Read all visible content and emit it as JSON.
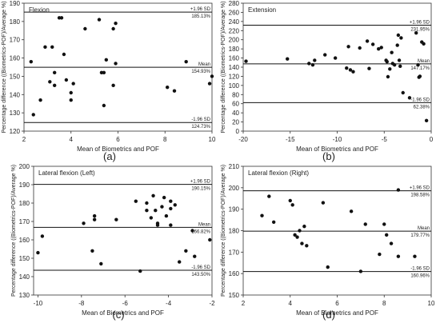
{
  "chart_data": [
    {
      "type": "scatter",
      "label": "(a)",
      "title": "Flexion",
      "xlabel": "Mean of Biometrics and POF",
      "ylabel": "Percentage difference ((Biometrics-POF)/Average %)",
      "xlim": [
        2,
        10
      ],
      "ylim": [
        120,
        190
      ],
      "xticks": [
        2,
        4,
        6,
        8,
        10
      ],
      "yticks": [
        120,
        130,
        140,
        150,
        160,
        170,
        180,
        190
      ],
      "grid": false,
      "reference_lines": [
        {
          "name": "+1.96 SD",
          "value": 185.13,
          "value_label": "185.13%"
        },
        {
          "name": "Mean",
          "value": 154.93,
          "value_label": "154.93%"
        },
        {
          "name": "-1.96 SD",
          "value": 124.73,
          "value_label": "124.73%"
        }
      ],
      "points": [
        [
          2.3,
          158
        ],
        [
          2.4,
          129
        ],
        [
          2.7,
          137
        ],
        [
          2.9,
          166
        ],
        [
          3.1,
          147
        ],
        [
          3.2,
          166
        ],
        [
          3.3,
          145
        ],
        [
          3.3,
          152
        ],
        [
          3.5,
          182
        ],
        [
          3.6,
          182
        ],
        [
          3.7,
          162
        ],
        [
          3.8,
          148
        ],
        [
          4.0,
          137
        ],
        [
          4.0,
          141
        ],
        [
          4.1,
          146
        ],
        [
          4.6,
          176
        ],
        [
          5.2,
          181
        ],
        [
          5.3,
          152
        ],
        [
          5.4,
          134
        ],
        [
          5.4,
          152
        ],
        [
          5.5,
          159
        ],
        [
          5.8,
          145
        ],
        [
          5.8,
          176
        ],
        [
          5.9,
          179
        ],
        [
          5.9,
          157
        ],
        [
          8.1,
          144
        ],
        [
          8.4,
          142
        ],
        [
          8.9,
          158
        ],
        [
          9.9,
          146
        ],
        [
          10.0,
          150
        ]
      ]
    },
    {
      "type": "scatter",
      "label": "(b)",
      "title": "Extension",
      "xlabel": "Mean of Biometrics and POF",
      "ylabel": "Percentage difference ((Biometrics-POF)/Average %)",
      "xlim": [
        -20,
        0
      ],
      "ylim": [
        0,
        280
      ],
      "xticks": [
        -20,
        -15,
        -10,
        -5,
        0
      ],
      "yticks": [
        0,
        20,
        40,
        60,
        80,
        100,
        120,
        140,
        160,
        180,
        200,
        220,
        240,
        260,
        280
      ],
      "grid": false,
      "reference_lines": [
        {
          "name": "+1.96 SD",
          "value": 231.95,
          "value_label": "231.95%"
        },
        {
          "name": "Mean",
          "value": 147.17,
          "value_label": "147.17%"
        },
        {
          "name": "-1.96 SD",
          "value": 62.38,
          "value_label": "62.38%"
        }
      ],
      "points": [
        [
          -19.7,
          153
        ],
        [
          -15.3,
          158
        ],
        [
          -13.0,
          148
        ],
        [
          -12.6,
          145
        ],
        [
          -12.4,
          155
        ],
        [
          -11.3,
          167
        ],
        [
          -10.2,
          160
        ],
        [
          -9.0,
          138
        ],
        [
          -8.8,
          185
        ],
        [
          -8.6,
          134
        ],
        [
          -8.3,
          130
        ],
        [
          -7.6,
          182
        ],
        [
          -6.8,
          197
        ],
        [
          -6.6,
          137
        ],
        [
          -6.2,
          190
        ],
        [
          -5.6,
          180
        ],
        [
          -5.3,
          183
        ],
        [
          -4.8,
          155
        ],
        [
          -4.7,
          152
        ],
        [
          -4.6,
          119
        ],
        [
          -4.4,
          136
        ],
        [
          -4.2,
          172
        ],
        [
          -4.1,
          148
        ],
        [
          -3.9,
          145
        ],
        [
          -3.6,
          188
        ],
        [
          -3.5,
          210
        ],
        [
          -3.4,
          155
        ],
        [
          -3.3,
          142
        ],
        [
          -3.2,
          204
        ],
        [
          -3.0,
          84
        ],
        [
          -2.3,
          73
        ],
        [
          -1.6,
          215
        ],
        [
          -1.4,
          145
        ],
        [
          -1.3,
          118
        ],
        [
          -1.2,
          120
        ],
        [
          -1.0,
          195
        ],
        [
          -0.8,
          191
        ],
        [
          -0.5,
          23
        ]
      ]
    },
    {
      "type": "scatter",
      "label": "(c)",
      "title": "Lateral flexion (Left)",
      "xlabel": "Mean of Biometrics and POF",
      "ylabel": "Percentage difference ((Biometrics-POF)/Average %)",
      "xlim": [
        -10.2,
        -2
      ],
      "ylim": [
        130,
        200
      ],
      "xticks": [
        -10,
        -8,
        -6,
        -4,
        -2
      ],
      "yticks": [
        130,
        140,
        150,
        160,
        170,
        180,
        190,
        200
      ],
      "grid": false,
      "reference_lines": [
        {
          "name": "+1.96 SD",
          "value": 190.15,
          "value_label": "190.15%"
        },
        {
          "name": "Mean",
          "value": 166.82,
          "value_label": "166.82%"
        },
        {
          "name": "-1.96 SD",
          "value": 143.5,
          "value_label": "143.50%"
        }
      ],
      "points": [
        [
          -10.0,
          153
        ],
        [
          -9.8,
          162
        ],
        [
          -7.9,
          169
        ],
        [
          -7.5,
          154
        ],
        [
          -7.4,
          171
        ],
        [
          -7.4,
          173
        ],
        [
          -7.1,
          147
        ],
        [
          -6.4,
          171
        ],
        [
          -5.5,
          181
        ],
        [
          -5.3,
          143
        ],
        [
          -5.0,
          176
        ],
        [
          -5.0,
          180
        ],
        [
          -4.8,
          172
        ],
        [
          -4.7,
          184
        ],
        [
          -4.6,
          176
        ],
        [
          -4.5,
          168
        ],
        [
          -4.5,
          169
        ],
        [
          -4.3,
          178
        ],
        [
          -4.2,
          183
        ],
        [
          -4.1,
          173
        ],
        [
          -3.9,
          168
        ],
        [
          -3.9,
          177
        ],
        [
          -3.9,
          181
        ],
        [
          -3.7,
          179
        ],
        [
          -3.5,
          148
        ],
        [
          -3.2,
          154
        ],
        [
          -2.9,
          165
        ],
        [
          -2.8,
          151
        ],
        [
          -2.1,
          160
        ]
      ]
    },
    {
      "type": "scatter",
      "label": "(d)",
      "title": "Lateral flexion (Right)",
      "xlabel": "Mean of Biometrics and POF",
      "ylabel": "Percentage difference ((Biometrics-POF)/Average %)",
      "xlim": [
        2,
        10
      ],
      "ylim": [
        150,
        210
      ],
      "xticks": [
        2,
        4,
        6,
        8,
        10
      ],
      "yticks": [
        150,
        160,
        170,
        180,
        190,
        200,
        210
      ],
      "grid": false,
      "reference_lines": [
        {
          "name": "+1.96 SD",
          "value": 198.58,
          "value_label": "198.58%"
        },
        {
          "name": "Mean",
          "value": 179.77,
          "value_label": "179.77%"
        },
        {
          "name": "-1.96 SD",
          "value": 160.96,
          "value_label": "160.96%"
        }
      ],
      "points": [
        [
          2.8,
          187
        ],
        [
          3.1,
          196
        ],
        [
          3.3,
          184
        ],
        [
          4.0,
          194
        ],
        [
          4.1,
          192
        ],
        [
          4.2,
          178
        ],
        [
          4.3,
          177
        ],
        [
          4.4,
          180
        ],
        [
          4.5,
          174
        ],
        [
          4.6,
          182
        ],
        [
          4.7,
          173
        ],
        [
          5.4,
          193
        ],
        [
          5.6,
          163
        ],
        [
          6.6,
          189
        ],
        [
          7.0,
          161
        ],
        [
          7.2,
          183
        ],
        [
          7.8,
          169
        ],
        [
          8.0,
          183
        ],
        [
          8.1,
          178
        ],
        [
          8.3,
          174
        ],
        [
          8.6,
          168
        ],
        [
          8.6,
          199
        ],
        [
          9.3,
          168
        ]
      ]
    }
  ]
}
